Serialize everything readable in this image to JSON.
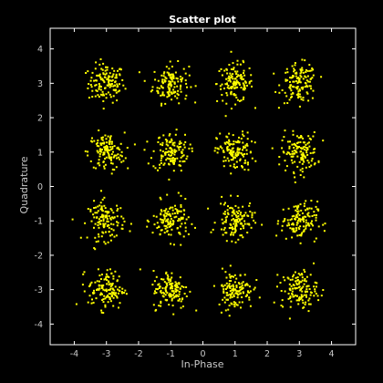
{
  "chart_data": {
    "type": "scatter",
    "title": "Scatter plot",
    "xlabel": "In-Phase",
    "ylabel": "Quadrature",
    "xlim": [
      -4.75,
      4.75
    ],
    "ylim": [
      -4.6,
      4.6
    ],
    "xticks": [
      -4,
      -3,
      -2,
      -1,
      0,
      1,
      2,
      3,
      4
    ],
    "yticks": [
      -4,
      -3,
      -2,
      -1,
      0,
      1,
      2,
      3,
      4
    ],
    "xtick_labels": [
      "-4",
      "-3",
      "-2",
      "-1",
      "0",
      "1",
      "2",
      "3",
      "4"
    ],
    "ytick_labels": [
      "-4",
      "-3",
      "-2",
      "-1",
      "0",
      "1",
      "2",
      "3",
      "4"
    ],
    "grid": false,
    "background": "#000000",
    "marker_color": "#ffff00",
    "series": [
      {
        "points_per_cluster": 130,
        "spread": 0.28,
        "clusters": [
          [
            -3,
            3
          ],
          [
            -1,
            3
          ],
          [
            1,
            3
          ],
          [
            3,
            3
          ],
          [
            -3,
            1
          ],
          [
            -1,
            1
          ],
          [
            1,
            1
          ],
          [
            3,
            1
          ],
          [
            -3,
            -1
          ],
          [
            -1,
            -1
          ],
          [
            1,
            -1
          ],
          [
            3,
            -1
          ],
          [
            -3,
            -3
          ],
          [
            -1,
            -3
          ],
          [
            1,
            -3
          ],
          [
            3,
            -3
          ]
        ]
      }
    ]
  }
}
